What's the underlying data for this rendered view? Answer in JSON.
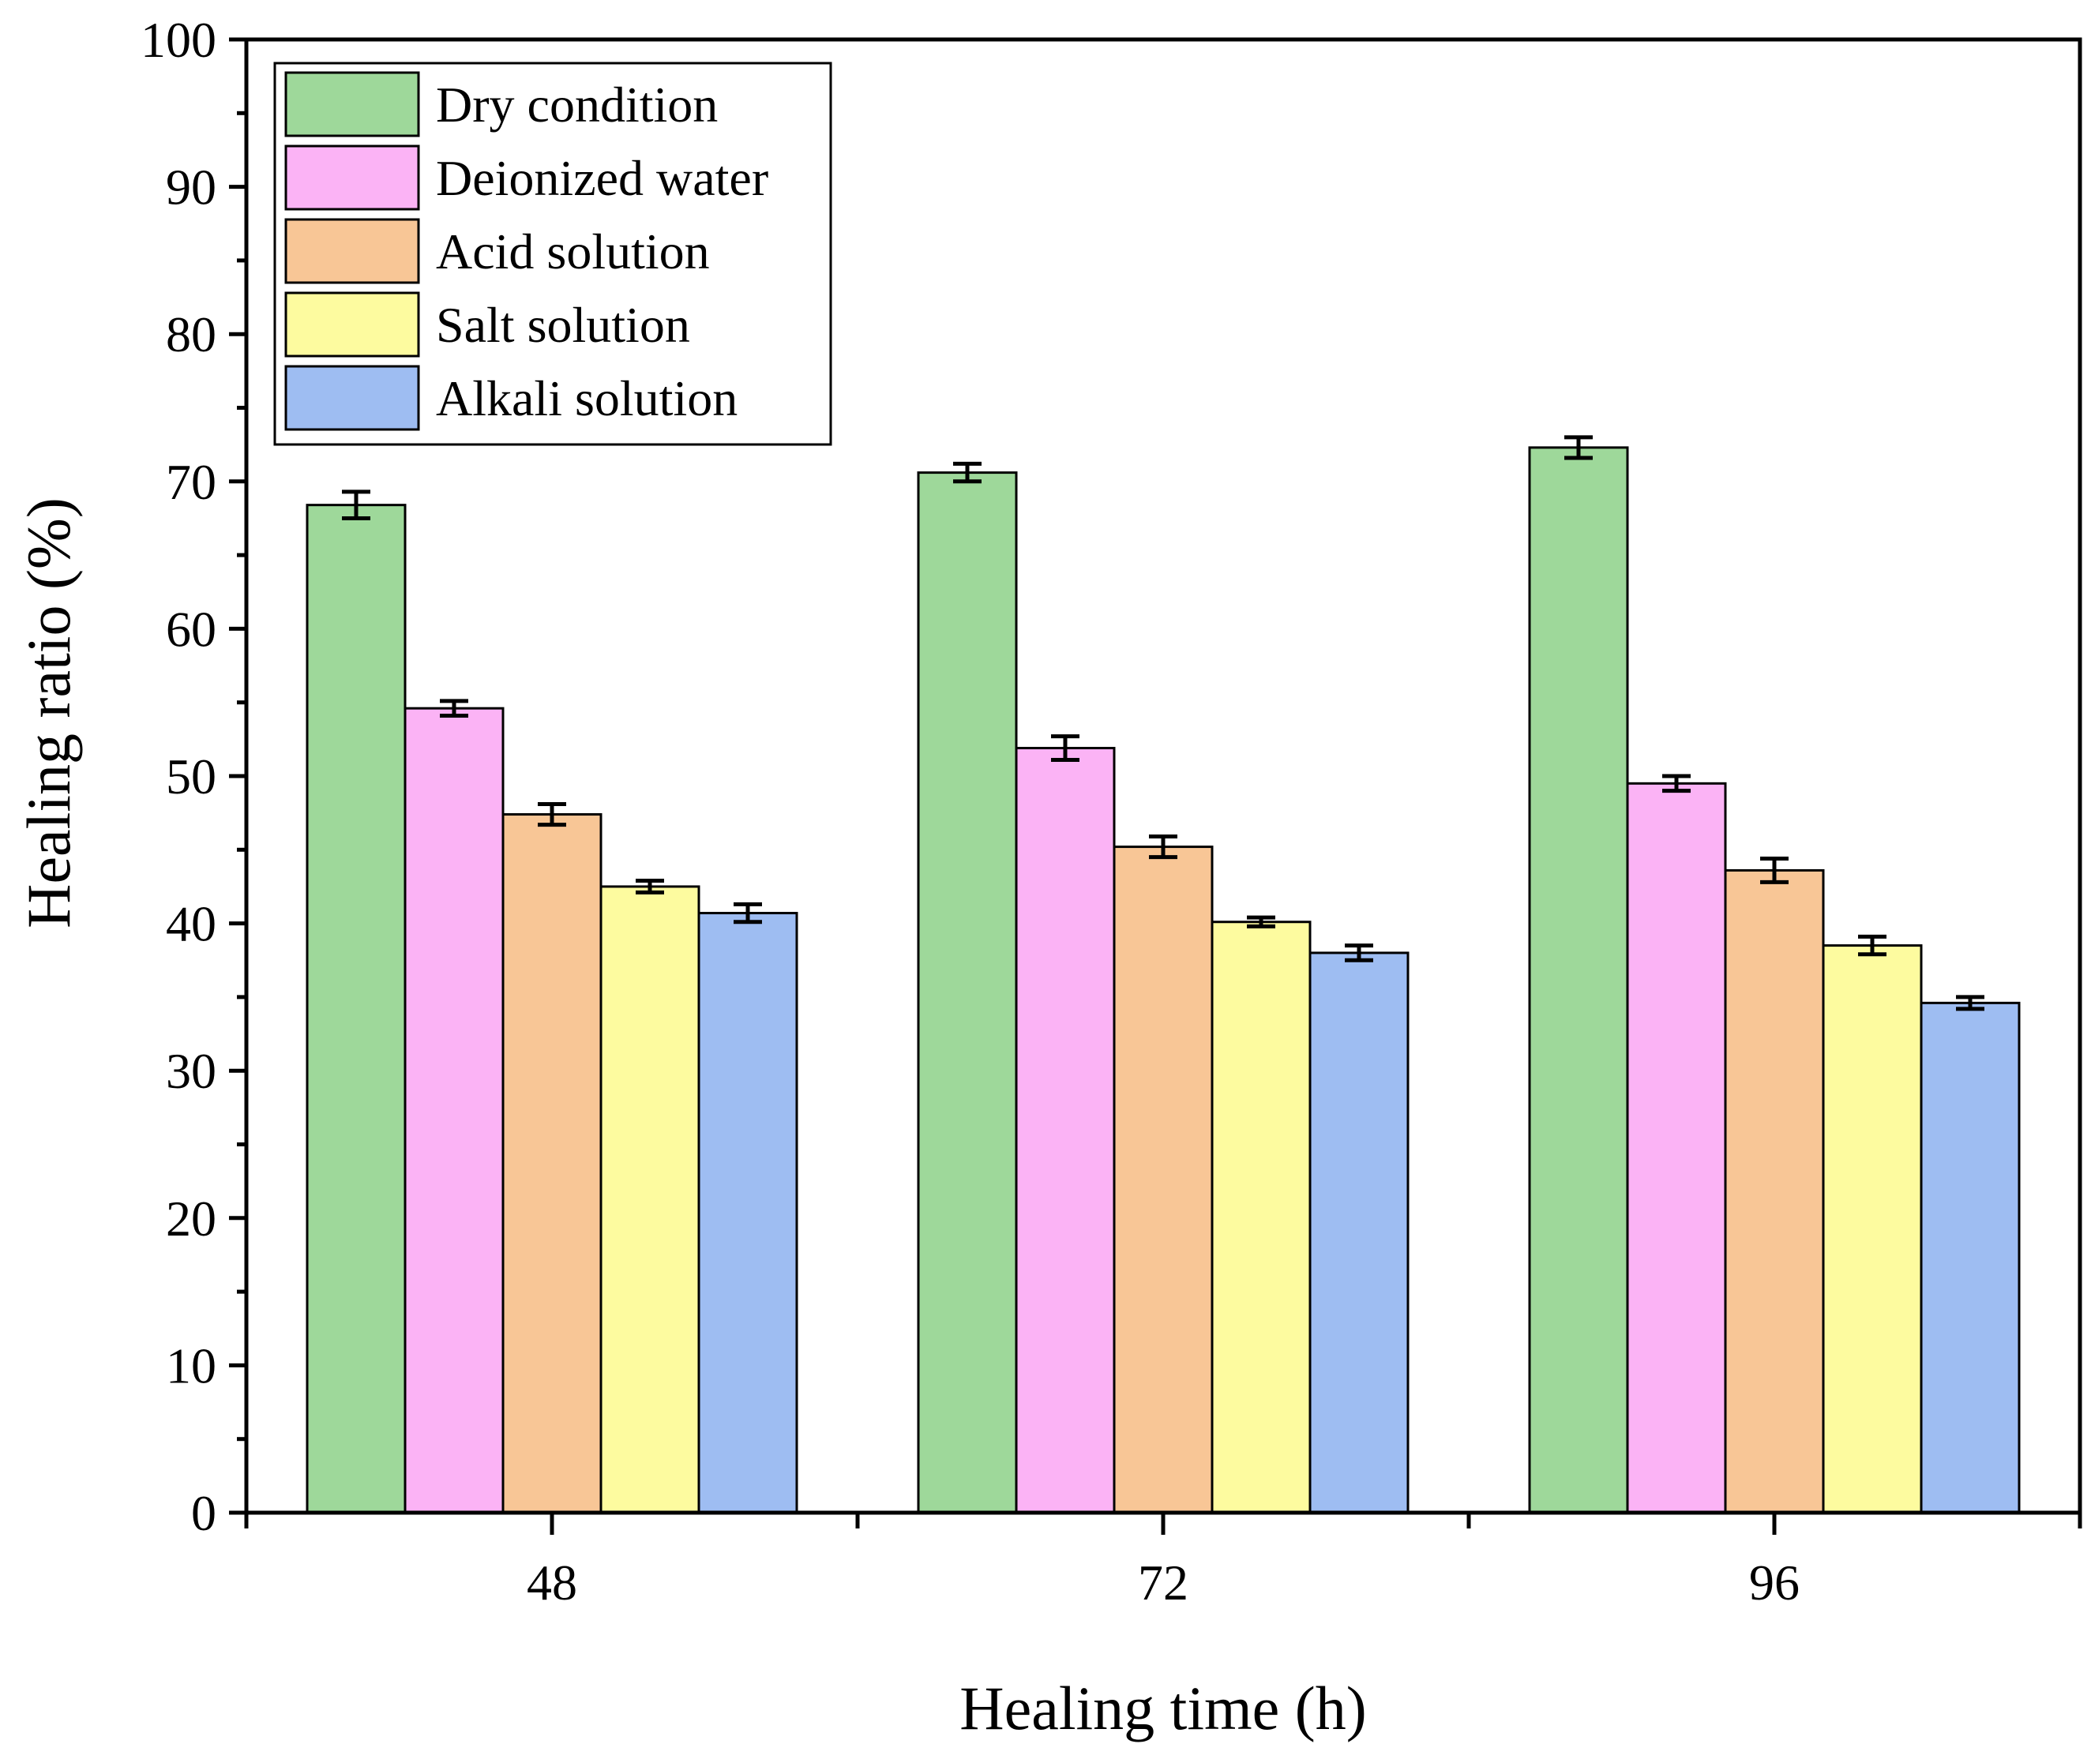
{
  "chart_data": {
    "type": "bar",
    "title": "",
    "xlabel": "Healing time (h)",
    "ylabel": "Healing ratio (%)",
    "ylim": [
      0,
      100
    ],
    "yticks": [
      0,
      10,
      20,
      30,
      40,
      50,
      60,
      70,
      80,
      90,
      100
    ],
    "categories": [
      "48",
      "72",
      "96"
    ],
    "legend_position": "top-left",
    "series": [
      {
        "name": "Dry condition",
        "color": "#9ed89a",
        "values": [
          68.4,
          70.6,
          72.3
        ],
        "errors": [
          0.9,
          0.6,
          0.7
        ]
      },
      {
        "name": "Deionized water",
        "color": "#fbb3f5",
        "values": [
          54.6,
          51.9,
          49.5
        ],
        "errors": [
          0.5,
          0.8,
          0.5
        ]
      },
      {
        "name": "Acid solution",
        "color": "#f8c696",
        "values": [
          47.4,
          45.2,
          43.6
        ],
        "errors": [
          0.7,
          0.7,
          0.8
        ]
      },
      {
        "name": "Salt solution",
        "color": "#fdfb9f",
        "values": [
          42.5,
          40.1,
          38.5
        ],
        "errors": [
          0.4,
          0.3,
          0.6
        ]
      },
      {
        "name": "Alkali solution",
        "color": "#9ebdf2",
        "values": [
          40.7,
          38.0,
          34.6
        ],
        "errors": [
          0.6,
          0.5,
          0.4
        ]
      }
    ]
  }
}
